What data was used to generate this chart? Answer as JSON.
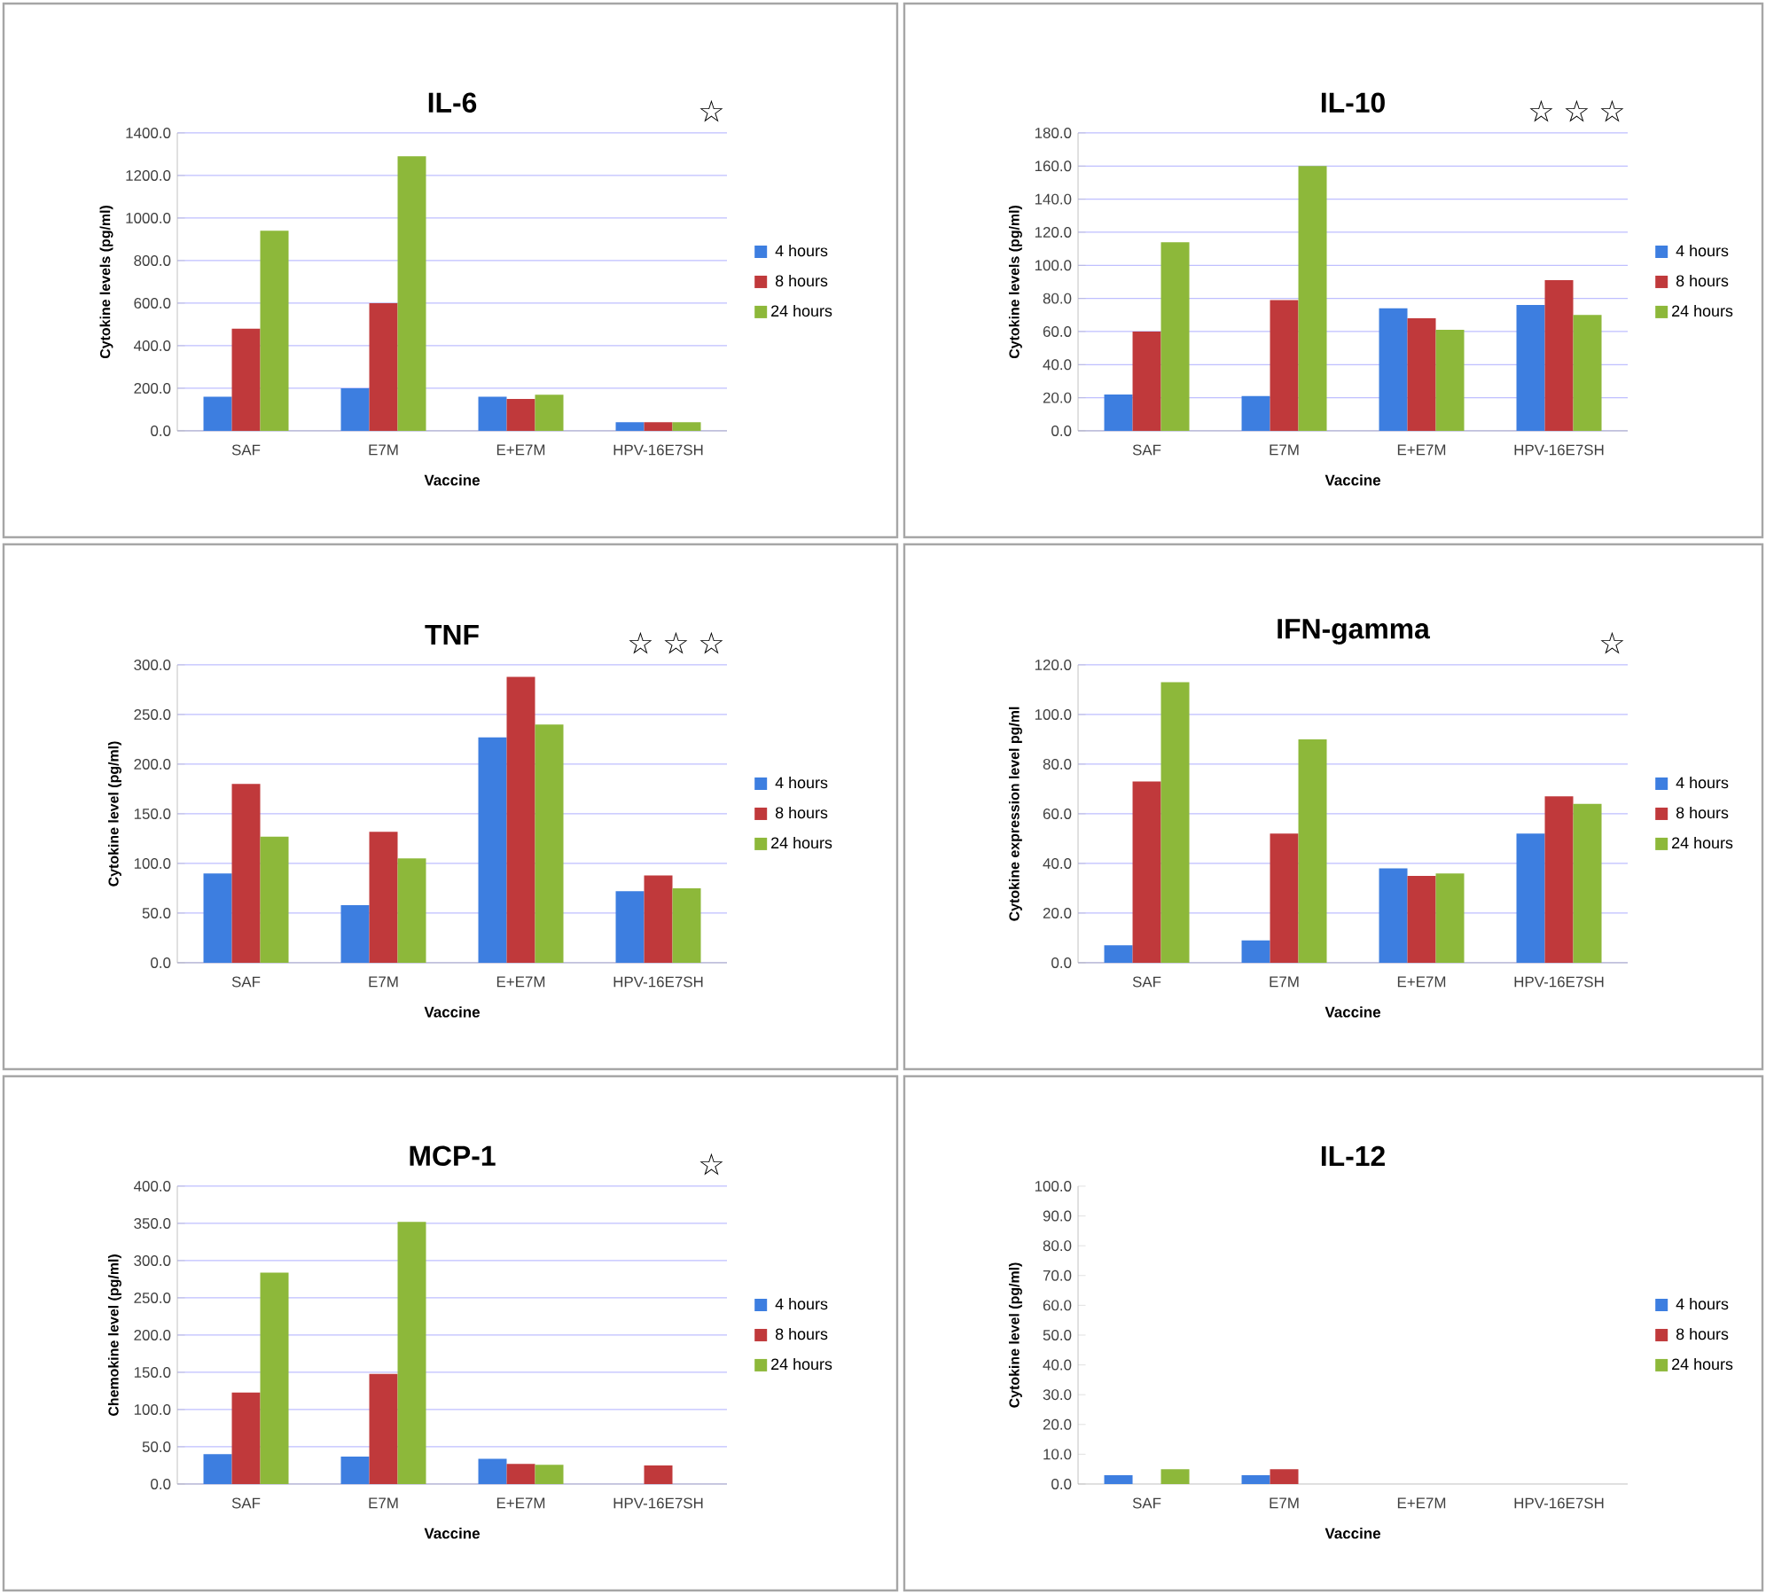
{
  "chart_data": [
    {
      "type": "bar",
      "title": "IL-6",
      "xlabel": "Vaccine",
      "ylabel": "Cytokine levels (pg/ml)",
      "categories": [
        "SAF",
        "E7M",
        "E+E7M",
        "HPV-16E7SH"
      ],
      "series": [
        {
          "name": "4 hours",
          "color": "#3d7ee0",
          "values": [
            160,
            200,
            160,
            40
          ]
        },
        {
          "name": "8 hours",
          "color": "#c0393b",
          "values": [
            480,
            600,
            150,
            40
          ]
        },
        {
          "name": "24 hours",
          "color": "#8db83a",
          "values": [
            940,
            1290,
            170,
            40
          ]
        }
      ],
      "ylim": [
        0,
        1400
      ],
      "yticks": [
        {
          "value": 0,
          "label": "0.0"
        },
        {
          "value": 200,
          "label": "200.0"
        },
        {
          "value": 400,
          "label": "400.0"
        },
        {
          "value": 600,
          "label": "600.0"
        },
        {
          "value": 800,
          "label": "800.0"
        },
        {
          "value": 1000,
          "label": "1000.0"
        },
        {
          "value": 1200,
          "label": "1200.0"
        },
        {
          "value": 1400,
          "label": "1400.0"
        }
      ],
      "grid": "y",
      "legend": "right",
      "annotations": [
        "☆"
      ]
    },
    {
      "type": "bar",
      "title": "IL-10",
      "xlabel": "Vaccine",
      "ylabel": "Cytokine levels (pg/ml)",
      "categories": [
        "SAF",
        "E7M",
        "E+E7M",
        "HPV-16E7SH"
      ],
      "series": [
        {
          "name": "4 hours",
          "color": "#3d7ee0",
          "values": [
            22,
            21,
            74,
            76
          ]
        },
        {
          "name": "8 hours",
          "color": "#c0393b",
          "values": [
            60,
            79,
            68,
            91
          ]
        },
        {
          "name": "24 hours",
          "color": "#8db83a",
          "values": [
            114,
            160,
            61,
            70
          ]
        }
      ],
      "ylim": [
        0,
        180
      ],
      "yticks": [
        {
          "value": 0,
          "label": "0.0"
        },
        {
          "value": 20,
          "label": "20.0"
        },
        {
          "value": 40,
          "label": "40.0"
        },
        {
          "value": 60,
          "label": "60.0"
        },
        {
          "value": 80,
          "label": "80.0"
        },
        {
          "value": 100,
          "label": "100.0"
        },
        {
          "value": 120,
          "label": "120.0"
        },
        {
          "value": 140,
          "label": "140.0"
        },
        {
          "value": 160,
          "label": "160.0"
        },
        {
          "value": 180,
          "label": "180.0"
        }
      ],
      "grid": "y",
      "legend": "right",
      "annotations": [
        "☆",
        "☆",
        "☆"
      ]
    },
    {
      "type": "bar",
      "title": "TNF",
      "xlabel": "Vaccine",
      "ylabel": "Cytokine level (pg/ml)",
      "categories": [
        "SAF",
        "E7M",
        "E+E7M",
        "HPV-16E7SH"
      ],
      "series": [
        {
          "name": "4 hours",
          "color": "#3d7ee0",
          "values": [
            90,
            58,
            227,
            72
          ]
        },
        {
          "name": "8 hours",
          "color": "#c0393b",
          "values": [
            180,
            132,
            288,
            88
          ]
        },
        {
          "name": "24 hours",
          "color": "#8db83a",
          "values": [
            127,
            105,
            240,
            75
          ]
        }
      ],
      "ylim": [
        0,
        300
      ],
      "yticks": [
        {
          "value": 0,
          "label": "0.0"
        },
        {
          "value": 50,
          "label": "50.0"
        },
        {
          "value": 100,
          "label": "100.0"
        },
        {
          "value": 150,
          "label": "150.0"
        },
        {
          "value": 200,
          "label": "200.0"
        },
        {
          "value": 250,
          "label": "250.0"
        },
        {
          "value": 300,
          "label": "300.0"
        }
      ],
      "grid": "y",
      "legend": "right",
      "annotations": [
        "☆",
        "☆",
        "☆"
      ]
    },
    {
      "type": "bar",
      "title": "IFN-gamma",
      "xlabel": "Vaccine",
      "ylabel": "Cytokine expression level pg/ml",
      "categories": [
        "SAF",
        "E7M",
        "E+E7M",
        "HPV-16E7SH"
      ],
      "series": [
        {
          "name": "4 hours",
          "color": "#3d7ee0",
          "values": [
            7,
            9,
            38,
            52
          ]
        },
        {
          "name": "8 hours",
          "color": "#c0393b",
          "values": [
            73,
            52,
            35,
            67
          ]
        },
        {
          "name": "24 hours",
          "color": "#8db83a",
          "values": [
            113,
            90,
            36,
            64
          ]
        }
      ],
      "ylim": [
        0,
        120
      ],
      "yticks": [
        {
          "value": 0,
          "label": "0.0"
        },
        {
          "value": 20,
          "label": "20.0"
        },
        {
          "value": 40,
          "label": "40.0"
        },
        {
          "value": 60,
          "label": "60.0"
        },
        {
          "value": 80,
          "label": "80.0"
        },
        {
          "value": 100,
          "label": "100.0"
        },
        {
          "value": 120,
          "label": "120.0"
        }
      ],
      "grid": "y",
      "legend": "right",
      "annotations": [
        "☆"
      ]
    },
    {
      "type": "bar",
      "title": "MCP-1",
      "xlabel": "Vaccine",
      "ylabel": "Chemokine level (pg/ml)",
      "categories": [
        "SAF",
        "E7M",
        "E+E7M",
        "HPV-16E7SH"
      ],
      "series": [
        {
          "name": "4 hours",
          "color": "#3d7ee0",
          "values": [
            40,
            37,
            34,
            null
          ]
        },
        {
          "name": "8 hours",
          "color": "#c0393b",
          "values": [
            123,
            148,
            27,
            25
          ]
        },
        {
          "name": "24 hours",
          "color": "#8db83a",
          "values": [
            284,
            352,
            26,
            null
          ]
        }
      ],
      "ylim": [
        0,
        400
      ],
      "yticks": [
        {
          "value": 0,
          "label": "0.0"
        },
        {
          "value": 50,
          "label": "50.0"
        },
        {
          "value": 100,
          "label": "100.0"
        },
        {
          "value": 150,
          "label": "150.0"
        },
        {
          "value": 200,
          "label": "200.0"
        },
        {
          "value": 250,
          "label": "250.0"
        },
        {
          "value": 300,
          "label": "300.0"
        },
        {
          "value": 350,
          "label": "350.0"
        },
        {
          "value": 400,
          "label": "400.0"
        }
      ],
      "grid": "y",
      "legend": "right",
      "annotations": [
        "☆"
      ]
    },
    {
      "type": "bar",
      "title": "IL-12",
      "xlabel": "Vaccine",
      "ylabel": "Cytokine level (pg/ml)",
      "categories": [
        "SAF",
        "E7M",
        "E+E7M",
        "HPV-16E7SH"
      ],
      "series": [
        {
          "name": "4 hours",
          "color": "#3d7ee0",
          "values": [
            3,
            3,
            null,
            null
          ]
        },
        {
          "name": "8 hours",
          "color": "#c0393b",
          "values": [
            null,
            5,
            null,
            null
          ]
        },
        {
          "name": "24 hours",
          "color": "#8db83a",
          "values": [
            5,
            null,
            null,
            null
          ]
        }
      ],
      "ylim": [
        0,
        100
      ],
      "yticks": [
        {
          "value": 0,
          "label": "0.0"
        },
        {
          "value": 10,
          "label": "10.0"
        },
        {
          "value": 20,
          "label": "20.0"
        },
        {
          "value": 30,
          "label": "30.0"
        },
        {
          "value": 40,
          "label": "40.0"
        },
        {
          "value": 50,
          "label": "50.0"
        },
        {
          "value": 60,
          "label": "60.0"
        },
        {
          "value": 70,
          "label": "70.0"
        },
        {
          "value": 80,
          "label": "80.0"
        },
        {
          "value": 90,
          "label": "90.0"
        },
        {
          "value": 100,
          "label": "100.0"
        }
      ],
      "grid": false,
      "legend": "right"
    }
  ]
}
